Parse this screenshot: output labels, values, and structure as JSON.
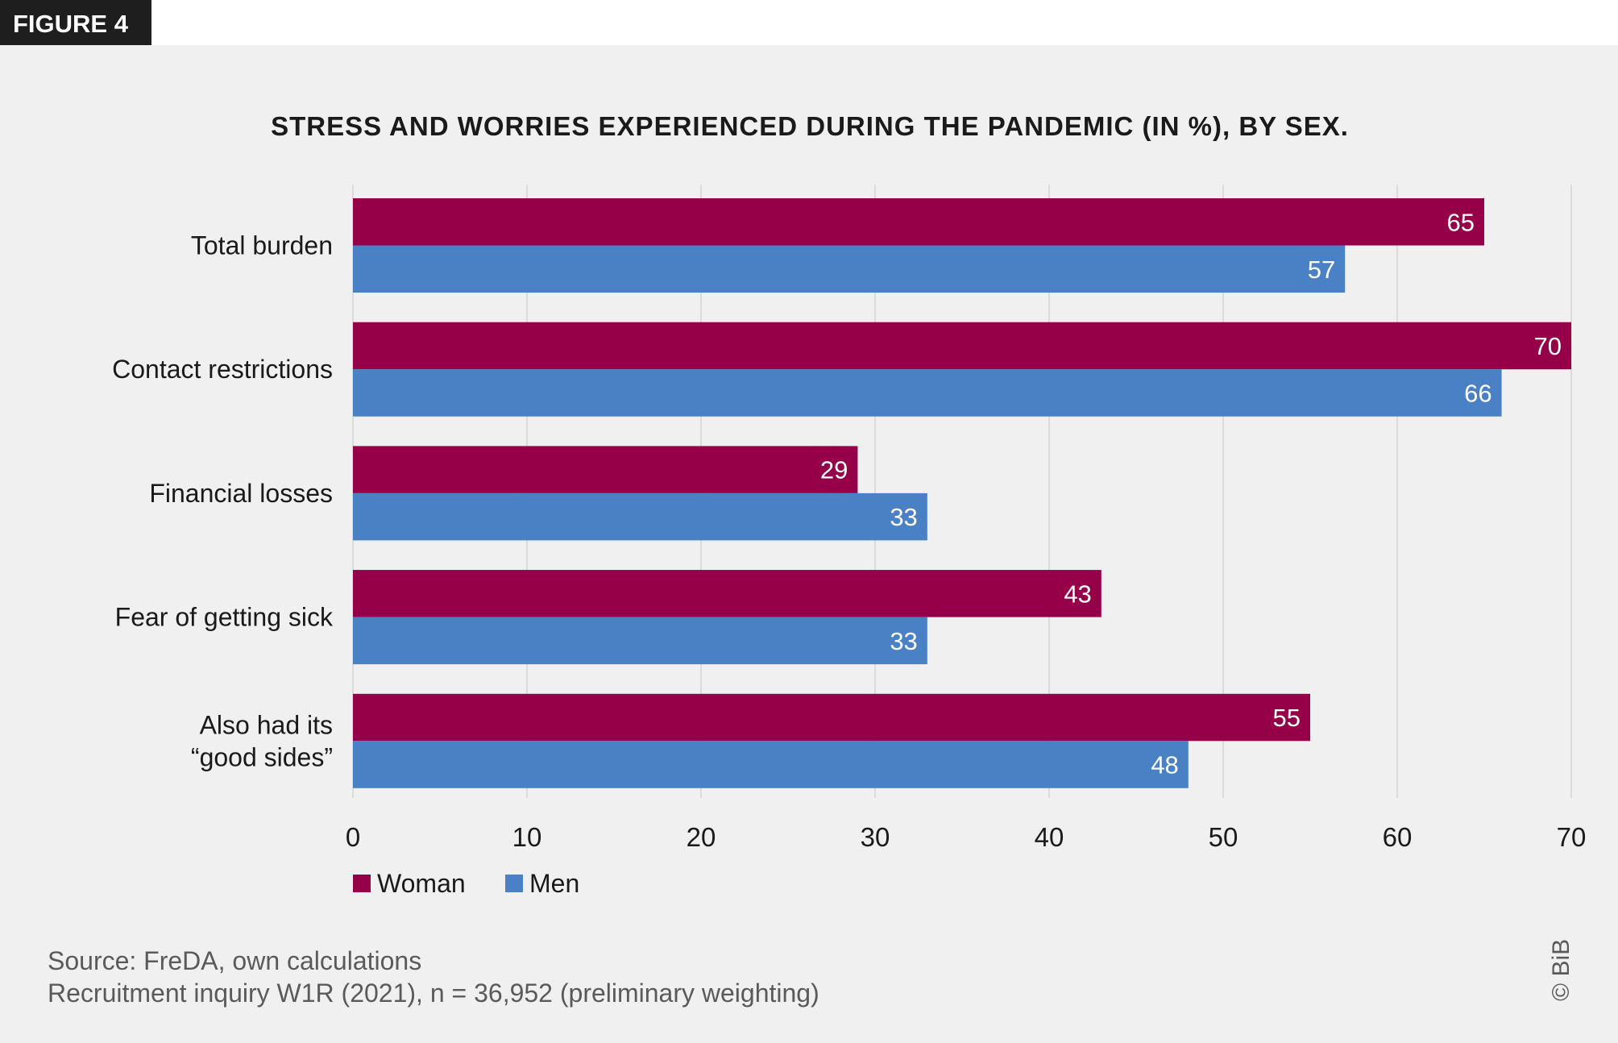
{
  "figure_label": "FIGURE 4",
  "copyright": "© BiB",
  "source_lines": [
    "Source: FreDA, own calculations",
    "Recruitment inquiry W1R (2021), n = 36,952 (preliminary weighting)"
  ],
  "colors": {
    "woman": "#960048",
    "men": "#4a80c4",
    "background": "#f0f0f0",
    "grid": "#dcdcdc"
  },
  "chart_data": {
    "type": "bar",
    "orientation": "horizontal",
    "title": "STRESS AND WORRIES EXPERIENCED DURING THE PANDEMIC (IN %), BY SEX.",
    "categories": [
      "Total burden",
      "Contact restrictions",
      "Financial losses",
      "Fear of getting sick",
      "Also had its “good sides”"
    ],
    "category_lines": [
      [
        "Total burden"
      ],
      [
        "Contact restrictions"
      ],
      [
        "Financial losses"
      ],
      [
        "Fear of getting sick"
      ],
      [
        "Also had its",
        "“good sides”"
      ]
    ],
    "series": [
      {
        "name": "Woman",
        "values": [
          65,
          70,
          29,
          43,
          55
        ]
      },
      {
        "name": "Men",
        "values": [
          57,
          66,
          33,
          33,
          48
        ]
      }
    ],
    "xlim": [
      0,
      70
    ],
    "xticks": [
      0,
      10,
      20,
      30,
      40,
      50,
      60,
      70
    ],
    "grid": true,
    "legend_placement": "bottom-left",
    "data_labels": true
  }
}
